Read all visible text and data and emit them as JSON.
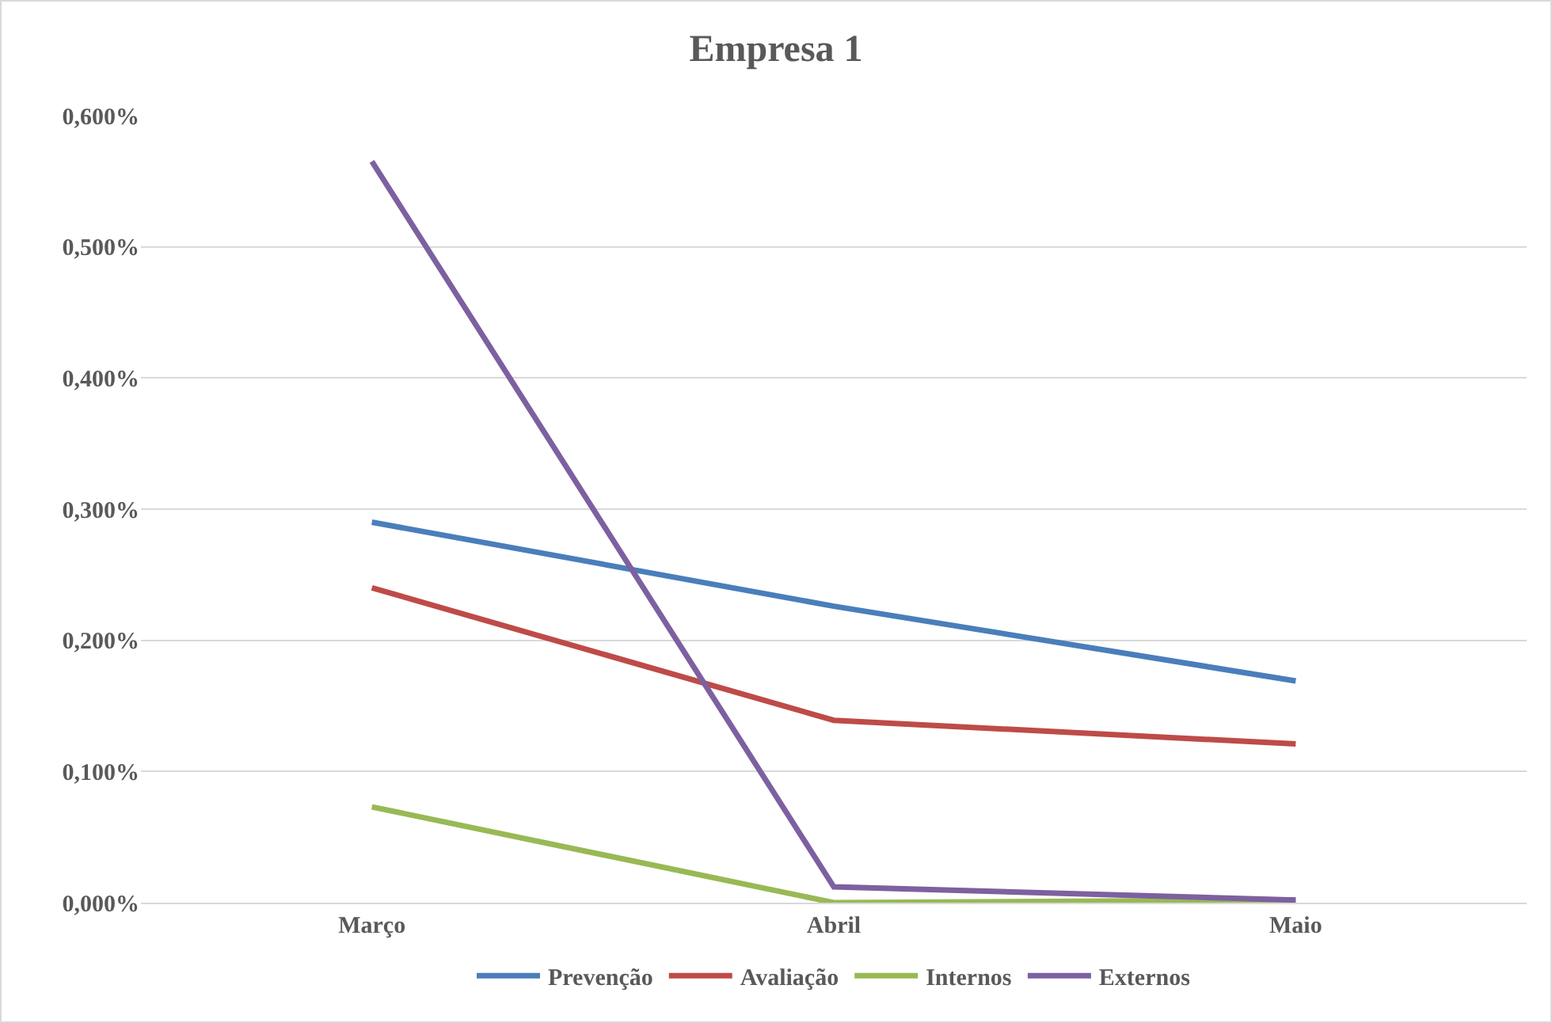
{
  "chart_data": {
    "type": "line",
    "title": "Empresa 1",
    "categories": [
      "Março",
      "Abril",
      "Maio"
    ],
    "series": [
      {
        "name": "Prevenção",
        "color": "#4a7ebb",
        "values": [
          0.29,
          0.226,
          0.169
        ]
      },
      {
        "name": "Avaliação",
        "color": "#be4b48",
        "values": [
          0.24,
          0.139,
          0.121
        ]
      },
      {
        "name": "Internos",
        "color": "#98b954",
        "values": [
          0.073,
          0.0,
          0.002
        ]
      },
      {
        "name": "Externos",
        "color": "#7d60a0",
        "values": [
          0.565,
          0.012,
          0.002
        ]
      }
    ],
    "ylim": [
      0,
      0.6
    ],
    "yticks": [
      {
        "value": 0,
        "label": "0,000%"
      },
      {
        "value": 0.1,
        "label": "0,100%"
      },
      {
        "value": 0.2,
        "label": "0,200%"
      },
      {
        "value": 0.3,
        "label": "0,300%"
      },
      {
        "value": 0.4,
        "label": "0,400%"
      },
      {
        "value": 0.5,
        "label": "0,500%"
      },
      {
        "value": 0.6,
        "label": "0,600%"
      }
    ],
    "grid": "y",
    "legend": "bottom",
    "marker": "none",
    "line_style": "solid"
  }
}
